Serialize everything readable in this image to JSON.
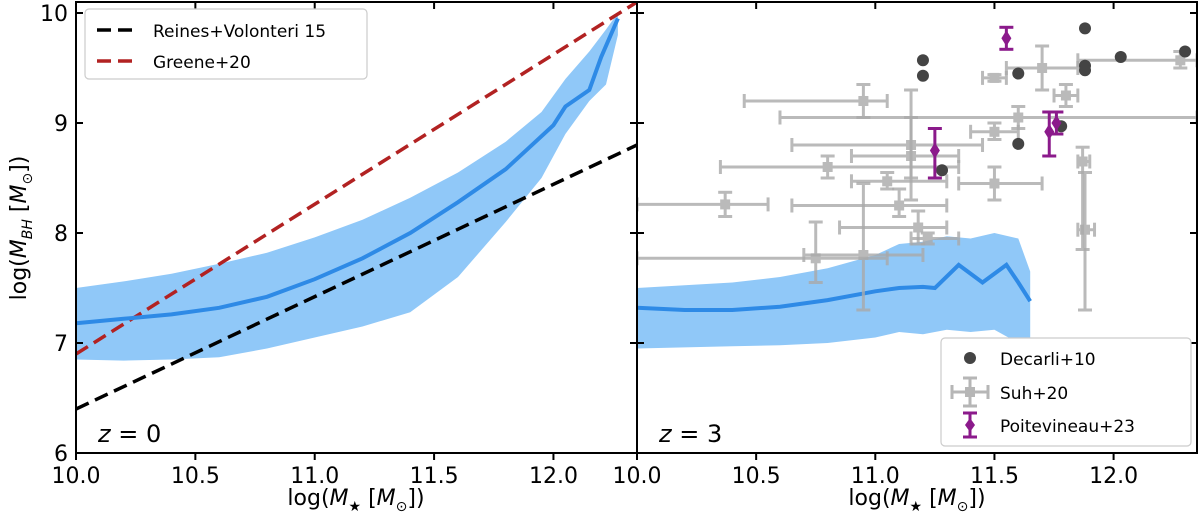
{
  "chart_data": [
    {
      "type": "line",
      "panel": "left",
      "panel_label": "z = 0",
      "xlabel": "log(M★ [M⊙])",
      "ylabel": "log(M_BH [M⊙])",
      "xlim": [
        10.0,
        12.35
      ],
      "ylim": [
        6.0,
        10.1
      ],
      "xticks": [
        10.0,
        10.5,
        11.0,
        11.5,
        12.0
      ],
      "xtick_labels": [
        "10.0",
        "10.5",
        "11.0",
        "11.5",
        "12.0"
      ],
      "yticks": [
        6,
        7,
        8,
        9,
        10
      ],
      "ytick_labels": [
        "6",
        "7",
        "8",
        "9",
        "10"
      ],
      "band": {
        "name": "model scatter",
        "color": "#90c8f8",
        "x": [
          10.0,
          10.2,
          10.4,
          10.6,
          10.8,
          11.0,
          11.2,
          11.4,
          11.6,
          11.8,
          11.95,
          12.05,
          12.15,
          12.22,
          12.27
        ],
        "lower": [
          6.85,
          6.84,
          6.85,
          6.87,
          6.95,
          7.05,
          7.15,
          7.28,
          7.6,
          8.1,
          8.5,
          8.9,
          9.2,
          9.35,
          9.8
        ],
        "upper": [
          7.5,
          7.56,
          7.63,
          7.72,
          7.82,
          7.96,
          8.12,
          8.32,
          8.55,
          8.83,
          9.1,
          9.4,
          9.65,
          9.85,
          10.0
        ]
      },
      "series": [
        {
          "name": "model median",
          "color": "#2e8ae6",
          "dash": "solid",
          "x": [
            10.0,
            10.2,
            10.4,
            10.6,
            10.8,
            11.0,
            11.2,
            11.4,
            11.6,
            11.8,
            11.9,
            12.0,
            12.05,
            12.15,
            12.2,
            12.27
          ],
          "y": [
            7.18,
            7.22,
            7.26,
            7.32,
            7.42,
            7.58,
            7.77,
            8.0,
            8.28,
            8.58,
            8.78,
            8.98,
            9.15,
            9.3,
            9.6,
            9.95
          ]
        },
        {
          "name": "Reines+Volonteri 15",
          "color": "#000000",
          "dash": "dashed",
          "x": [
            10.0,
            12.35
          ],
          "y": [
            6.4,
            8.8
          ]
        },
        {
          "name": "Greene+20",
          "color": "#b22222",
          "dash": "dashed",
          "x": [
            10.0,
            12.35
          ],
          "y": [
            6.9,
            10.1
          ]
        }
      ],
      "legend": {
        "position": "top-left",
        "entries": [
          "Reines+Volonteri 15",
          "Greene+20"
        ]
      }
    },
    {
      "type": "scatter",
      "panel": "right",
      "panel_label": "z = 3",
      "xlabel": "log(M★ [M⊙])",
      "xlim": [
        10.0,
        12.35
      ],
      "ylim": [
        6.0,
        10.1
      ],
      "xticks": [
        10.0,
        10.5,
        11.0,
        11.5,
        12.0
      ],
      "xtick_labels": [
        "10.0",
        "10.5",
        "11.0",
        "11.5",
        "12.0"
      ],
      "band": {
        "name": "model scatter",
        "color": "#90c8f8",
        "x": [
          10.0,
          10.4,
          10.6,
          10.8,
          11.0,
          11.1,
          11.2,
          11.3,
          11.4,
          11.5,
          11.6,
          11.65
        ],
        "lower": [
          6.95,
          6.97,
          6.98,
          7.0,
          7.05,
          7.1,
          7.08,
          7.12,
          7.1,
          7.12,
          7.0,
          6.75
        ],
        "upper": [
          7.5,
          7.55,
          7.6,
          7.68,
          7.8,
          7.9,
          7.92,
          7.97,
          7.95,
          8.0,
          7.95,
          7.65
        ]
      },
      "series": [
        {
          "name": "model median",
          "color": "#2e8ae6",
          "dash": "solid",
          "x": [
            10.0,
            10.2,
            10.4,
            10.6,
            10.8,
            11.0,
            11.1,
            11.2,
            11.25,
            11.35,
            11.45,
            11.55,
            11.6,
            11.65
          ],
          "y": [
            7.32,
            7.3,
            7.3,
            7.33,
            7.39,
            7.47,
            7.5,
            7.51,
            7.5,
            7.71,
            7.55,
            7.71,
            7.55,
            7.38
          ]
        }
      ],
      "decarli": {
        "name": "Decarli+10",
        "color": "#555555",
        "points": [
          [
            11.2,
            9.57
          ],
          [
            11.2,
            9.43
          ],
          [
            11.6,
            9.45
          ],
          [
            11.6,
            8.81
          ],
          [
            11.78,
            8.97
          ],
          [
            11.28,
            8.57
          ],
          [
            11.88,
            9.86
          ],
          [
            11.88,
            9.52
          ],
          [
            11.88,
            9.48
          ],
          [
            12.03,
            9.6
          ],
          [
            12.3,
            9.65
          ]
        ]
      },
      "suh": {
        "name": "Suh+20",
        "color": "#aaaaaa",
        "points": [
          {
            "x": 10.37,
            "y": 8.26,
            "xlo": 10.0,
            "xhi": 10.55,
            "ylo": 8.15,
            "yhi": 8.37
          },
          {
            "x": 10.75,
            "y": 7.77,
            "xlo": 10.0,
            "xhi": 11.05,
            "ylo": 7.55,
            "yhi": 8.1
          },
          {
            "x": 10.95,
            "y": 7.8,
            "xlo": 10.7,
            "xhi": 11.2,
            "ylo": 7.3,
            "yhi": 8.45
          },
          {
            "x": 10.8,
            "y": 8.6,
            "xlo": 10.35,
            "xhi": 11.35,
            "ylo": 8.5,
            "yhi": 8.7
          },
          {
            "x": 10.95,
            "y": 9.2,
            "xlo": 10.45,
            "xhi": 11.05,
            "ylo": 9.05,
            "yhi": 9.35
          },
          {
            "x": 11.05,
            "y": 8.47,
            "xlo": 10.9,
            "xhi": 11.3,
            "ylo": 8.4,
            "yhi": 8.55
          },
          {
            "x": 11.1,
            "y": 8.25,
            "xlo": 10.65,
            "xhi": 11.3,
            "ylo": 8.15,
            "yhi": 8.4
          },
          {
            "x": 11.15,
            "y": 8.7,
            "xlo": 10.9,
            "xhi": 11.35,
            "ylo": 8.3,
            "yhi": 9.3
          },
          {
            "x": 11.15,
            "y": 8.8,
            "xlo": 10.65,
            "xhi": 11.45,
            "ylo": 8.5,
            "yhi": 9.05
          },
          {
            "x": 11.18,
            "y": 8.05,
            "xlo": 10.85,
            "xhi": 11.3,
            "ylo": 7.9,
            "yhi": 8.2
          },
          {
            "x": 11.22,
            "y": 7.95,
            "xlo": 11.15,
            "xhi": 11.35,
            "ylo": 7.9,
            "yhi": 8.0
          },
          {
            "x": 11.5,
            "y": 8.45,
            "xlo": 11.35,
            "xhi": 11.7,
            "ylo": 8.3,
            "yhi": 8.6
          },
          {
            "x": 11.5,
            "y": 8.92,
            "xlo": 11.4,
            "xhi": 11.6,
            "ylo": 8.85,
            "yhi": 9.0
          },
          {
            "x": 11.5,
            "y": 9.41,
            "xlo": 11.45,
            "xhi": 11.55,
            "ylo": 9.38,
            "yhi": 9.44
          },
          {
            "x": 11.7,
            "y": 9.5,
            "xlo": 11.55,
            "xhi": 11.85,
            "ylo": 9.3,
            "yhi": 9.7
          },
          {
            "x": 11.8,
            "y": 9.25,
            "xlo": 11.75,
            "xhi": 11.85,
            "ylo": 9.15,
            "yhi": 9.35
          },
          {
            "x": 11.6,
            "y": 9.05,
            "xlo": 10.6,
            "xhi": 12.35,
            "ylo": 8.95,
            "yhi": 9.15
          },
          {
            "x": 11.87,
            "y": 8.65,
            "xlo": 11.85,
            "xhi": 11.9,
            "ylo": 7.85,
            "yhi": 8.78
          },
          {
            "x": 11.88,
            "y": 8.03,
            "xlo": 11.85,
            "xhi": 11.92,
            "ylo": 7.3,
            "yhi": 8.55
          },
          {
            "x": 12.28,
            "y": 9.57,
            "xlo": 11.85,
            "xhi": 12.35,
            "ylo": 9.5,
            "yhi": 9.65
          }
        ]
      },
      "poitevineau": {
        "name": "Poitevineau+23",
        "color": "#8b1a8b",
        "points": [
          {
            "x": 11.55,
            "y": 9.77,
            "ylo": 9.67,
            "yhi": 9.87
          },
          {
            "x": 11.25,
            "y": 8.75,
            "ylo": 8.5,
            "yhi": 8.95
          },
          {
            "x": 11.73,
            "y": 8.92,
            "ylo": 8.7,
            "yhi": 9.1
          },
          {
            "x": 11.76,
            "y": 9.0,
            "ylo": 8.9,
            "yhi": 9.1
          }
        ]
      },
      "legend": {
        "position": "bottom-right",
        "entries": [
          "Decarli+10",
          "Suh+20",
          "Poitevineau+23"
        ]
      }
    }
  ]
}
